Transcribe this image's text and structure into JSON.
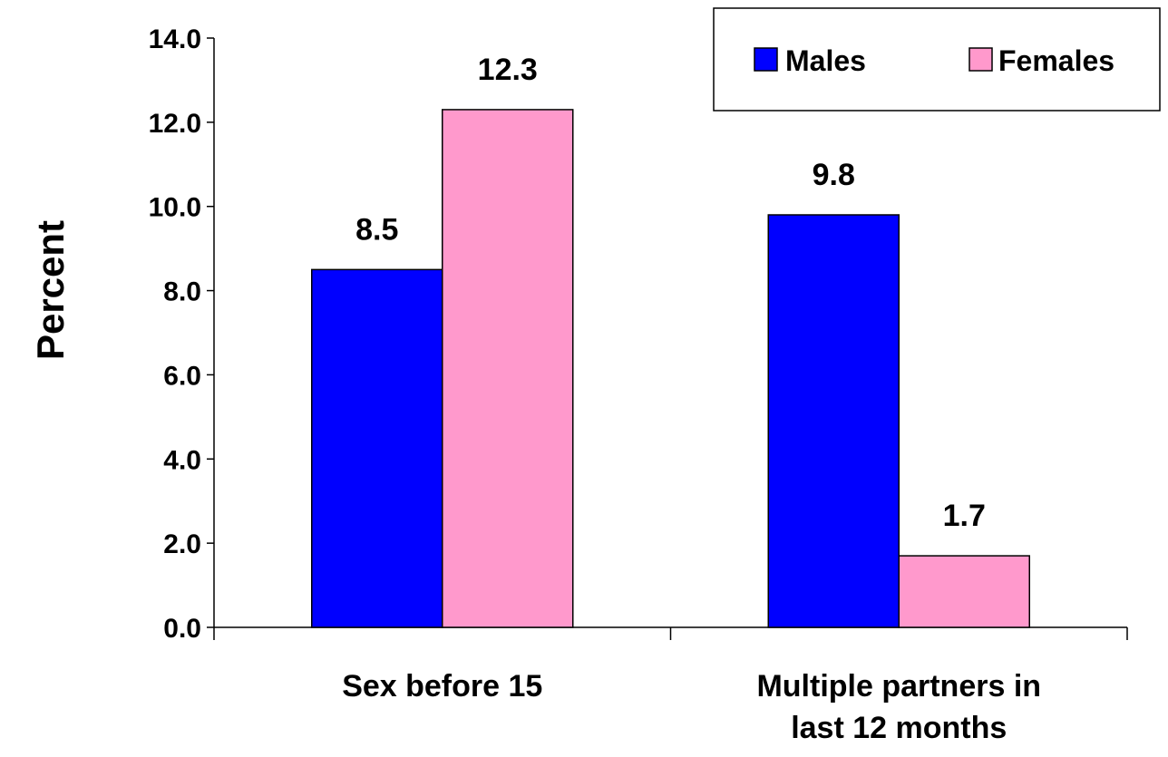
{
  "chart_data": {
    "type": "bar",
    "categories": [
      "Sex before 15",
      "Multiple partners in last 12 months"
    ],
    "category_lines": [
      [
        "Sex before 15"
      ],
      [
        "Multiple partners in",
        "last 12 months"
      ]
    ],
    "series": [
      {
        "name": "Males",
        "values": [
          8.5,
          9.8
        ],
        "labels": [
          "8.5",
          "9.8"
        ],
        "color": "#0000FF"
      },
      {
        "name": "Females",
        "values": [
          12.3,
          1.7
        ],
        "labels": [
          "12.3",
          "1.7"
        ],
        "color": "#FF99CC"
      }
    ],
    "xlabel": "",
    "ylabel": "Percent",
    "ylim": [
      0,
      14
    ],
    "yticks": [
      0,
      2,
      4,
      6,
      8,
      10,
      12,
      14
    ],
    "ytick_labels": [
      "0.0",
      "2.0",
      "4.0",
      "6.0",
      "8.0",
      "10.0",
      "12.0",
      "14.0"
    ],
    "grid": false,
    "legend_position": "top-right"
  }
}
